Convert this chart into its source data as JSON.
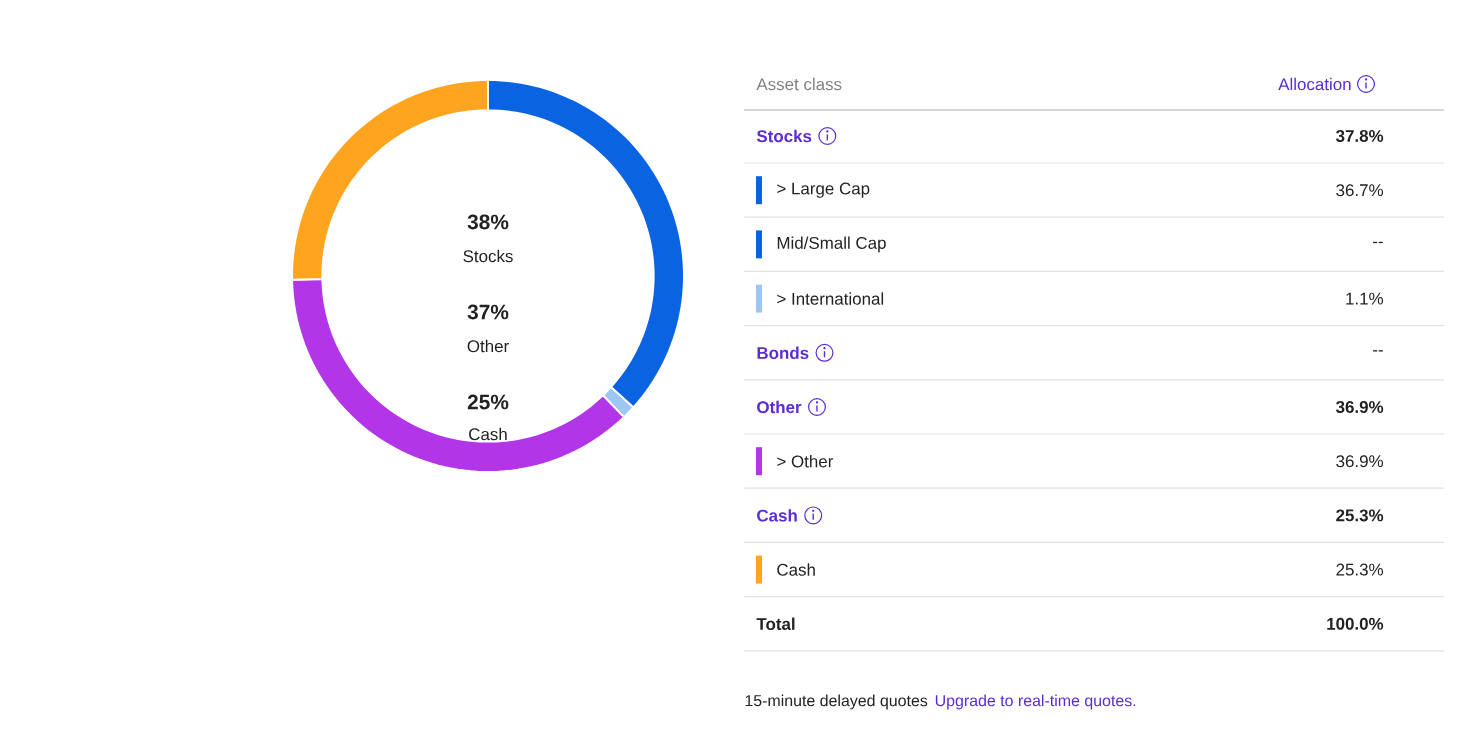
{
  "chart_data": {
    "type": "donut",
    "categories": [
      "> Large Cap",
      "Mid/Small Cap",
      "> International",
      "> Other",
      "Cash"
    ],
    "values": [
      36.7,
      null,
      1.1,
      36.9,
      25.3
    ],
    "value_labels": [
      "36.7%",
      "--",
      "1.1%",
      "36.9%",
      "25.3%"
    ],
    "colors": [
      "#0a63e0",
      "#0a63e0",
      "#9dc7f2",
      "#b236e8",
      "#ffa41f"
    ],
    "legend": "right",
    "annotations": [
      "38%",
      "Stocks",
      "37%",
      "Other",
      "25%",
      "Cash",
      "Asset class",
      "Allocation",
      "Stocks",
      "37.8%",
      "Bonds",
      "--",
      "Other",
      "36.9%",
      "Cash",
      "25.3%",
      "Total",
      "100.0%",
      "15-minute delayed quotes",
      "Upgrade to real-time quotes."
    ]
  }
}
